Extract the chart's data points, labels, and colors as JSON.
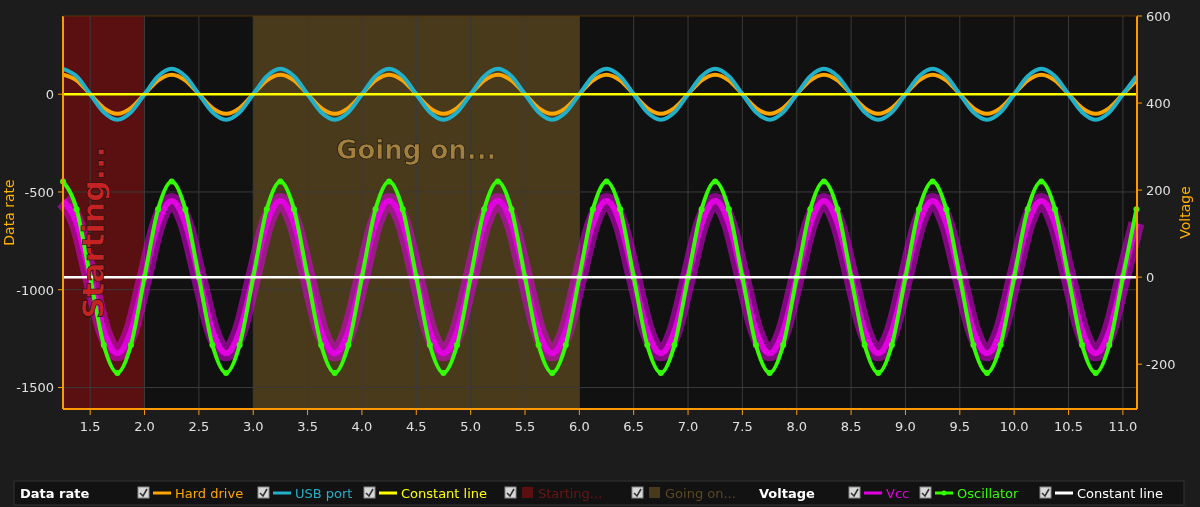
{
  "chart_data": {
    "type": "line",
    "xlim": [
      1.25,
      11.13
    ],
    "xticks": [
      1.5,
      {
        "value": 2,
        "label": "2.0"
      },
      2.5,
      {
        "value": 3,
        "label": "3.0"
      },
      3.5,
      {
        "value": 4,
        "label": "4.0"
      },
      4.5,
      {
        "value": 5,
        "label": "5.0"
      },
      5.5,
      {
        "value": 6,
        "label": "6.0"
      },
      6.5,
      {
        "value": 7,
        "label": "7.0"
      },
      7.5,
      {
        "value": 8,
        "label": "8.0"
      },
      8.5,
      {
        "value": 9,
        "label": "9.0"
      },
      9.5,
      {
        "value": 10,
        "label": "10.0"
      },
      10.5,
      {
        "value": 11,
        "label": "11.0"
      }
    ],
    "ylim": [
      -1610,
      400
    ],
    "yticks": [
      0,
      -500,
      -1000,
      -1500
    ],
    "y2lim": [
      -303,
      600
    ],
    "y2ticks": [
      -200,
      0,
      200,
      400,
      600
    ],
    "ylabel": "Data rate",
    "y2label": "Voltage",
    "grid": true,
    "legend": "bottom",
    "x": [
      1.25,
      1.375,
      1.5,
      1.625,
      1.75,
      1.875,
      2,
      2.125,
      2.25,
      2.375,
      2.5,
      2.625,
      2.75,
      2.875,
      3,
      3.125,
      3.25,
      3.375,
      3.5,
      3.625,
      3.75,
      3.875,
      4,
      4.125,
      4.25,
      4.375,
      4.5,
      4.625,
      4.75,
      4.875,
      5,
      5.125,
      5.25,
      5.375,
      5.5,
      5.625,
      5.75,
      5.875,
      6,
      6.125,
      6.25,
      6.375,
      6.5,
      6.625,
      6.75,
      6.875,
      7,
      7.125,
      7.25,
      7.375,
      7.5,
      7.625,
      7.75,
      7.875,
      8,
      8.125,
      8.25,
      8.375,
      8.5,
      8.625,
      8.75,
      8.875,
      9,
      9.125,
      9.25,
      9.375,
      9.5,
      9.625,
      9.75,
      9.875,
      10,
      10.125,
      10.25,
      10.375,
      10.5,
      10.625,
      10.75,
      10.875,
      11,
      11.125
    ],
    "bands": [
      {
        "axis": "x",
        "from": 1.25,
        "to": 2,
        "label": "Starting...",
        "color": "#5a1010"
      },
      {
        "axis": "x",
        "from": 3,
        "to": 6,
        "label": "Going on...",
        "color": "#4a3a1c"
      }
    ],
    "series": [
      {
        "name": "Hard drive",
        "color": "#ffa500",
        "values": [
          100,
          71,
          0,
          -71,
          -100,
          -71,
          0,
          71,
          100,
          71,
          0,
          -71,
          -100,
          -71,
          0,
          71,
          100,
          71,
          0,
          -71,
          -100,
          -71,
          0,
          71,
          100,
          71,
          0,
          -71,
          -100,
          -71,
          0,
          71,
          100,
          71,
          0,
          -71,
          -100,
          -71,
          0,
          71,
          100,
          71,
          0,
          -71,
          -100,
          -71,
          0,
          71,
          100,
          71,
          0,
          -71,
          -100,
          -71,
          0,
          71,
          100,
          71,
          0,
          -71,
          -100,
          -71,
          0,
          71,
          100,
          71,
          0,
          -71,
          -100,
          -71,
          0,
          71,
          100,
          71,
          0,
          -71,
          -100,
          -71,
          0,
          71
        ]
      },
      {
        "name": "USB port",
        "color": "#22b0c8",
        "values": [
          130,
          92,
          0,
          -92,
          -130,
          -92,
          0,
          92,
          130,
          92,
          0,
          -92,
          -130,
          -92,
          0,
          92,
          130,
          92,
          0,
          -92,
          -130,
          -92,
          0,
          92,
          130,
          92,
          0,
          -92,
          -130,
          -92,
          0,
          92,
          130,
          92,
          0,
          -92,
          -130,
          -92,
          0,
          92,
          130,
          92,
          0,
          -92,
          -130,
          -92,
          0,
          92,
          130,
          92,
          0,
          -92,
          -130,
          -92,
          0,
          92,
          130,
          92,
          0,
          -92,
          -130,
          -92,
          0,
          92,
          130,
          92,
          0,
          -92,
          -130,
          -92,
          0,
          92,
          130,
          92,
          0,
          -92,
          -130,
          -92,
          0,
          92
        ]
      },
      {
        "name": "Constant line",
        "color": "#ffff00",
        "values": [
          0,
          0,
          0,
          0,
          0,
          0,
          0,
          0,
          0,
          0,
          0,
          0,
          0,
          0,
          0,
          0,
          0,
          0,
          0,
          0,
          0,
          0,
          0,
          0,
          0,
          0,
          0,
          0,
          0,
          0,
          0,
          0,
          0,
          0,
          0,
          0,
          0,
          0,
          0,
          0,
          0,
          0,
          0,
          0,
          0,
          0,
          0,
          0,
          0,
          0,
          0,
          0,
          0,
          0,
          0,
          0,
          0,
          0,
          0,
          0,
          0,
          0,
          0,
          0,
          0,
          0,
          0,
          0,
          0,
          0,
          0,
          0,
          0,
          0,
          0,
          0,
          0,
          0,
          0,
          0
        ]
      },
      {
        "name": "Vcc",
        "color": "#e000e0",
        "axis": "y2",
        "values": [
          175,
          124,
          0,
          -124,
          -175,
          -124,
          0,
          124,
          175,
          124,
          0,
          -124,
          -175,
          -124,
          0,
          124,
          175,
          124,
          0,
          -124,
          -175,
          -124,
          0,
          124,
          175,
          124,
          0,
          -124,
          -175,
          -124,
          0,
          124,
          175,
          124,
          0,
          -124,
          -175,
          -124,
          0,
          124,
          175,
          124,
          0,
          -124,
          -175,
          -124,
          0,
          124,
          175,
          124,
          0,
          -124,
          -175,
          -124,
          0,
          124,
          175,
          124,
          0,
          -124,
          -175,
          -124,
          0,
          124,
          175,
          124,
          0,
          -124,
          -175,
          -124,
          0,
          124,
          175,
          124,
          0,
          -124,
          -175,
          -124,
          0,
          124
        ]
      },
      {
        "name": "Oscillator",
        "color": "#33ff00",
        "axis": "y2",
        "marker": "circle",
        "values": [
          220,
          156,
          0,
          -156,
          -220,
          -156,
          0,
          156,
          220,
          156,
          0,
          -156,
          -220,
          -156,
          0,
          156,
          220,
          156,
          0,
          -156,
          -220,
          -156,
          0,
          156,
          220,
          156,
          0,
          -156,
          -220,
          -156,
          0,
          156,
          220,
          156,
          0,
          -156,
          -220,
          -156,
          0,
          156,
          220,
          156,
          0,
          -156,
          -220,
          -156,
          0,
          156,
          220,
          156,
          0,
          -156,
          -220,
          -156,
          0,
          156,
          220,
          156,
          0,
          -156,
          -220,
          -156,
          0,
          156,
          220,
          156,
          0,
          -156,
          -220,
          -156,
          0,
          156,
          220,
          156,
          0,
          -156,
          -220,
          -156,
          0,
          156
        ]
      },
      {
        "name": "Constant line",
        "color": "#ffffff",
        "axis": "y2",
        "values": [
          0,
          0,
          0,
          0,
          0,
          0,
          0,
          0,
          0,
          0,
          0,
          0,
          0,
          0,
          0,
          0,
          0,
          0,
          0,
          0,
          0,
          0,
          0,
          0,
          0,
          0,
          0,
          0,
          0,
          0,
          0,
          0,
          0,
          0,
          0,
          0,
          0,
          0,
          0,
          0,
          0,
          0,
          0,
          0,
          0,
          0,
          0,
          0,
          0,
          0,
          0,
          0,
          0,
          0,
          0,
          0,
          0,
          0,
          0,
          0,
          0,
          0,
          0,
          0,
          0,
          0,
          0,
          0,
          0,
          0,
          0,
          0,
          0,
          0,
          0,
          0,
          0,
          0,
          0,
          0
        ]
      }
    ]
  }
}
